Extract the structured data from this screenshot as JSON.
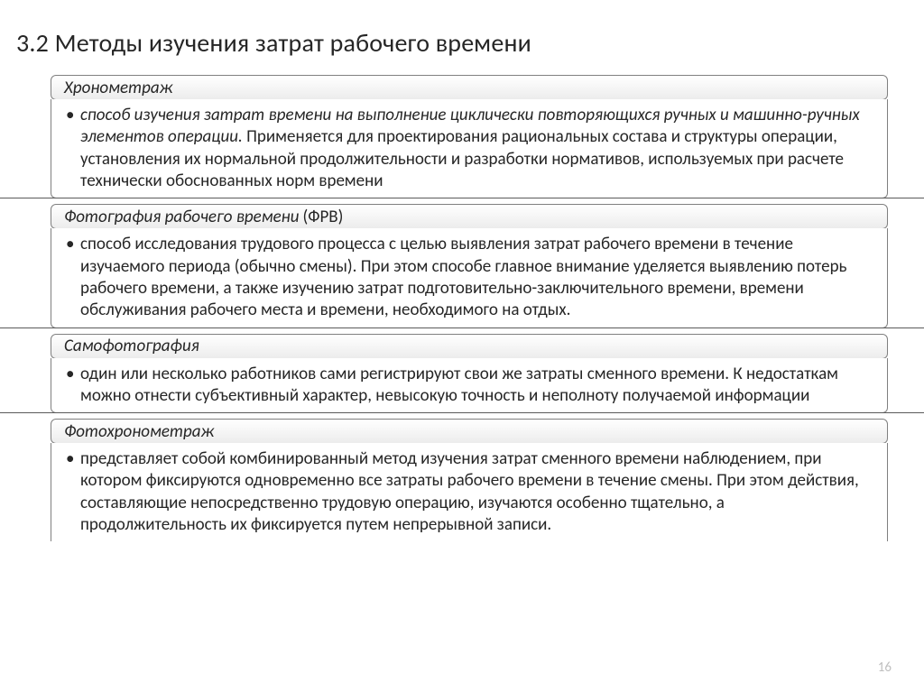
{
  "title": "3.2 Методы изучения затрат рабочего времени",
  "page_number": "16",
  "colors": {
    "text": "#262626",
    "border": "#808080",
    "rule": "#5a5a5a",
    "page_num": "#bfbfbf",
    "bg": "#ffffff"
  },
  "typography": {
    "title_fontsize": 28,
    "header_fontsize": 19,
    "body_fontsize": 19,
    "header_style": "italic",
    "lead_style": "italic"
  },
  "sections": [
    {
      "header": "Хронометраж",
      "header_suffix": "",
      "lead": "способ изучения затрат времени на выполнение циклически повторяющихся ручных и машинно-ручных элементов операции.",
      "rest": " Применяется для проектирования рациональных состава и структуры операции, установления их нормальной продолжительности и разработки нормативов, используемых при расчете технически обоснованных норм времени"
    },
    {
      "header": "Фотография рабочего времени",
      "header_suffix": " (ФРВ)",
      "lead": "",
      "rest": "способ исследования трудового процесса с целью выявления затрат рабочего времени в течение изучаемого периода (обычно смены). При этом способе главное внимание уделяется выявлению потерь рабочего времени, а также изучению затрат подготовительно-заключительного времени, времени обслуживания рабочего места и времени, необходимого на отдых."
    },
    {
      "header": "Самофотография",
      "header_suffix": "",
      "lead": "",
      "rest": " один или несколько работников сами регистрируют свои же затраты сменного времени. К недостаткам можно отнести субъективный характер, невысокую точность и неполноту получаемой информации"
    },
    {
      "header": "Фотохронометраж",
      "header_suffix": "",
      "lead": "",
      "rest": "представляет собой комбинированный метод изучения затрат сменного времени наблюдением, при котором фиксируются одновременно все затраты рабочего времени в течение смены. При этом действия, составляющие непосредственно трудовую операцию, изучаются особенно тщательно, а продолжительность их фиксируется путем непрерывной записи."
    }
  ]
}
